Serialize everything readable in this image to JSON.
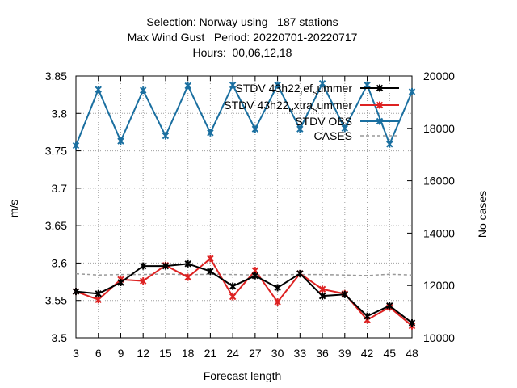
{
  "chart_data": {
    "type": "line",
    "title": [
      "Selection: Norway using   187 stations",
      "Max Wind Gust   Period: 20220701-20220717",
      "Hours:  00,06,12,18"
    ],
    "xlabel": "Forecast length",
    "ylabel": "m/s",
    "y2label": "No cases",
    "x": [
      3,
      6,
      9,
      12,
      15,
      18,
      21,
      24,
      27,
      30,
      33,
      36,
      39,
      42,
      45,
      48
    ],
    "xlim": [
      3,
      48
    ],
    "ylim": [
      3.5,
      3.85
    ],
    "y2lim": [
      10000,
      20000
    ],
    "yticks": [
      "3.5",
      "3.55",
      "3.6",
      "3.65",
      "3.7",
      "3.75",
      "3.8",
      "3.85"
    ],
    "y2ticks": [
      "10000",
      "12000",
      "14000",
      "16000",
      "18000",
      "20000"
    ],
    "xticks": [
      "3",
      "6",
      "9",
      "12",
      "15",
      "18",
      "21",
      "24",
      "27",
      "30",
      "33",
      "36",
      "39",
      "42",
      "45",
      "48"
    ],
    "grid": true,
    "legend_position": "top-right",
    "series": [
      {
        "name": "STDV 43h22_ref_summer",
        "label_parts": {
          "main": "STDV 43h22",
          "sub1": "r",
          "mid": "ef",
          "sub2": "s",
          "tail": "ummer"
        },
        "color": "#000000",
        "axis": "y",
        "values": [
          3.562,
          3.559,
          3.574,
          3.596,
          3.596,
          3.599,
          3.589,
          3.569,
          3.583,
          3.567,
          3.586,
          3.556,
          3.558,
          3.529,
          3.543,
          3.52
        ]
      },
      {
        "name": "STDV 43h22_extra_summer",
        "label_parts": {
          "main": "STDV 43h22",
          "sub1": "e",
          "mid": "xtra",
          "sub2": "s",
          "tail": "ummer"
        },
        "color": "#dd2222",
        "axis": "y",
        "values": [
          3.562,
          3.551,
          3.578,
          3.576,
          3.597,
          3.581,
          3.606,
          3.555,
          3.59,
          3.548,
          3.586,
          3.565,
          3.559,
          3.524,
          3.541,
          3.516
        ]
      },
      {
        "name": "STDV OBS",
        "color": "#1a6fa0",
        "axis": "y",
        "values": [
          3.757,
          3.832,
          3.763,
          3.831,
          3.77,
          3.837,
          3.774,
          3.838,
          3.779,
          3.838,
          3.779,
          3.84,
          3.78,
          3.838,
          3.759,
          3.829
        ]
      },
      {
        "name": "CASES",
        "color": "#999999",
        "axis": "y2",
        "dashed": true,
        "values": [
          12450,
          12400,
          12420,
          12420,
          12440,
          12410,
          12430,
          12420,
          12400,
          12410,
          12420,
          12420,
          12400,
          12380,
          12430,
          12400
        ]
      }
    ]
  }
}
